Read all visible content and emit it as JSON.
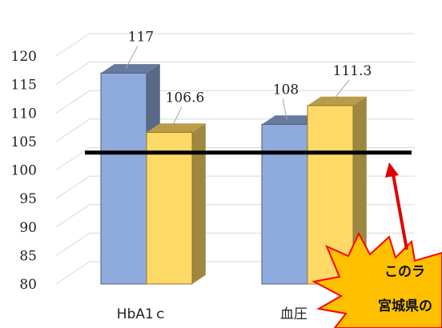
{
  "chart_data": {
    "type": "bar",
    "style": "3d-clustered-column",
    "categories": [
      "HbA1ｃ",
      "血圧"
    ],
    "series": [
      {
        "values": [
          117,
          108
        ],
        "color": "#8FAADC"
      },
      {
        "values": [
          106.6,
          111.3
        ],
        "color": "#FFD966"
      }
    ],
    "data_labels": [
      "117",
      "106.6",
      "108",
      "111.3"
    ],
    "yticks": [
      "80",
      "85",
      "90",
      "95",
      "100",
      "105",
      "110",
      "115",
      "120"
    ],
    "ylim": [
      80,
      120
    ],
    "grid": true,
    "legend": "none",
    "reference_line": {
      "value": 102.5,
      "color": "#000000"
    }
  },
  "annotation": {
    "lines": [
      "このラ",
      "宮城県の"
    ],
    "fill": "#FFC000",
    "stroke": "#FF0000",
    "arrow_color": "#E00000"
  }
}
